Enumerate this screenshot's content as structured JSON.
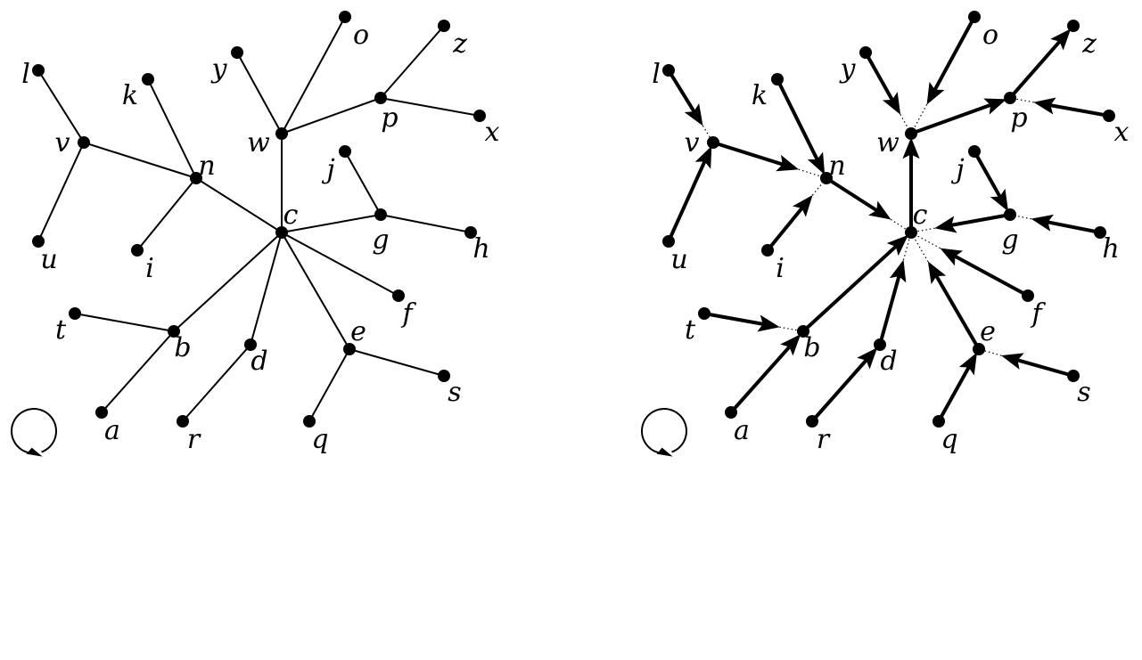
{
  "colors": {
    "ink": "#000000",
    "background": "#ffffff"
  },
  "nodes": [
    "l",
    "k",
    "y",
    "o",
    "z",
    "v",
    "n",
    "w",
    "p",
    "x",
    "j",
    "u",
    "i",
    "c",
    "g",
    "h",
    "t",
    "b",
    "d",
    "e",
    "f",
    "s",
    "a",
    "r",
    "q"
  ],
  "left_tree": {
    "edges": [
      [
        "l",
        "v"
      ],
      [
        "u",
        "v"
      ],
      [
        "v",
        "n"
      ],
      [
        "k",
        "n"
      ],
      [
        "i",
        "n"
      ],
      [
        "n",
        "c"
      ],
      [
        "y",
        "w"
      ],
      [
        "o",
        "w"
      ],
      [
        "w",
        "p"
      ],
      [
        "z",
        "p"
      ],
      [
        "x",
        "p"
      ],
      [
        "w",
        "c"
      ],
      [
        "j",
        "g"
      ],
      [
        "h",
        "g"
      ],
      [
        "g",
        "c"
      ],
      [
        "f",
        "c"
      ],
      [
        "b",
        "c"
      ],
      [
        "t",
        "b"
      ],
      [
        "a",
        "b"
      ],
      [
        "d",
        "c"
      ],
      [
        "r",
        "d"
      ],
      [
        "e",
        "c"
      ],
      [
        "q",
        "e"
      ],
      [
        "s",
        "e"
      ]
    ]
  },
  "right_tree": {
    "solid_arrows": [
      [
        "l",
        "v"
      ],
      [
        "u",
        "v"
      ],
      [
        "v",
        "n"
      ],
      [
        "k",
        "n"
      ],
      [
        "i",
        "n"
      ],
      [
        "n",
        "c"
      ],
      [
        "c",
        "w"
      ],
      [
        "y",
        "w"
      ],
      [
        "o",
        "w"
      ],
      [
        "w",
        "p"
      ],
      [
        "p",
        "z"
      ],
      [
        "x",
        "p"
      ],
      [
        "j",
        "g"
      ],
      [
        "h",
        "g"
      ],
      [
        "g",
        "c"
      ],
      [
        "f",
        "c"
      ],
      [
        "b",
        "c"
      ],
      [
        "t",
        "b"
      ],
      [
        "a",
        "b"
      ],
      [
        "d",
        "c"
      ],
      [
        "r",
        "d"
      ],
      [
        "e",
        "c"
      ],
      [
        "q",
        "e"
      ],
      [
        "s",
        "e"
      ]
    ],
    "dotted_links": [
      [
        "l",
        "v"
      ],
      [
        "v",
        "n"
      ],
      [
        "i",
        "n"
      ],
      [
        "n",
        "c"
      ],
      [
        "y",
        "w"
      ],
      [
        "o",
        "w"
      ],
      [
        "x",
        "p"
      ],
      [
        "g",
        "c"
      ],
      [
        "h",
        "g"
      ],
      [
        "f",
        "c"
      ],
      [
        "t",
        "b"
      ],
      [
        "d",
        "c"
      ],
      [
        "e",
        "c"
      ],
      [
        "s",
        "e"
      ]
    ]
  },
  "rotation_icon": "clockwise-rotation-icon"
}
